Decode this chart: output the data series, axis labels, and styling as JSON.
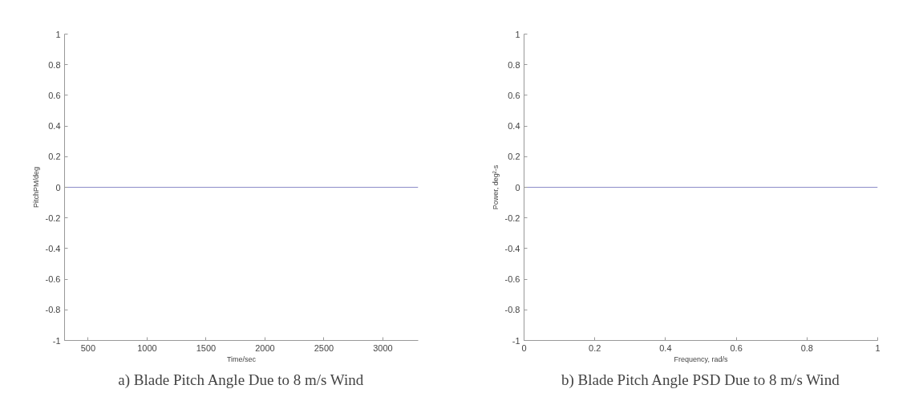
{
  "chart_data": [
    {
      "type": "line",
      "title": "a) Blade Pitch Angle Due to 8 m/s Wind",
      "xlabel": "Time/sec",
      "ylabel": "PitchPM/deg",
      "x": [
        300,
        3300
      ],
      "series": [
        {
          "color": "#8c8cc8",
          "values": [
            0,
            0
          ]
        }
      ],
      "xlim": [
        300,
        3300
      ],
      "xticks": [
        500,
        1000,
        1500,
        2000,
        2500,
        3000
      ],
      "ylim": [
        -1,
        1
      ],
      "yticks": [
        -1,
        -0.8,
        -0.6,
        -0.4,
        -0.2,
        0,
        0.2,
        0.4,
        0.6,
        0.8,
        1
      ],
      "grid": false
    },
    {
      "type": "line",
      "title": "b) Blade Pitch Angle PSD Due to 8 m/s Wind",
      "xlabel": "Frequency, rad/s",
      "ylabel": "Power, deg²-s",
      "x": [
        0,
        1
      ],
      "series": [
        {
          "color": "#8c8cc8",
          "values": [
            0,
            0
          ]
        }
      ],
      "xlim": [
        0,
        1
      ],
      "xticks": [
        0,
        0.2,
        0.4,
        0.6,
        0.8,
        1
      ],
      "ylim": [
        -1,
        1
      ],
      "yticks": [
        -1,
        -0.8,
        -0.6,
        -0.4,
        -0.2,
        0,
        0.2,
        0.4,
        0.6,
        0.8,
        1
      ],
      "grid": false
    }
  ]
}
